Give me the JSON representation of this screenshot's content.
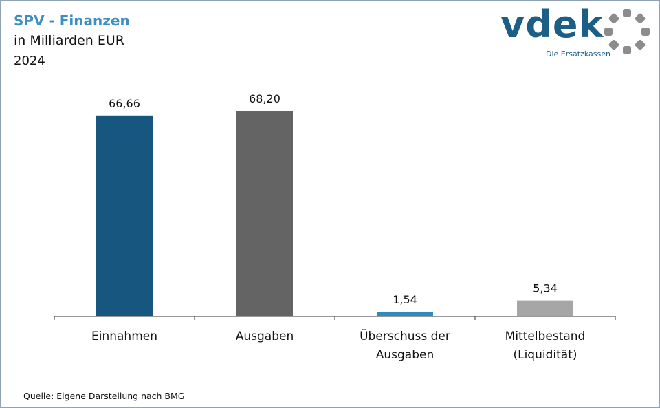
{
  "header": {
    "title": "SPV - Finanzen",
    "subtitle": "in Milliarden EUR",
    "year": "2024"
  },
  "logo": {
    "word": "vdek",
    "tagline": "Die Ersatzkassen",
    "icon": "ring-segments-icon",
    "color": "#1c5f86",
    "ring_color": "#8c8c8c"
  },
  "source": "Quelle: Eigene Darstellung nach BMG",
  "chart_data": {
    "type": "bar",
    "title": "SPV - Finanzen",
    "ylabel": "",
    "xlabel": "",
    "ylim": [
      0,
      68.2
    ],
    "grid": false,
    "categories": [
      [
        "Einnahmen"
      ],
      [
        "Ausgaben"
      ],
      [
        "Überschuss der",
        "Ausgaben"
      ],
      [
        "Mittelbestand",
        "(Liquidität)"
      ]
    ],
    "values": [
      66.66,
      68.2,
      1.54,
      5.34
    ],
    "value_labels": [
      "66,66",
      "68,20",
      "1,54",
      "5,34"
    ],
    "colors": [
      "#17577f",
      "#646464",
      "#2e8bc0",
      "#a6a6a6"
    ]
  }
}
